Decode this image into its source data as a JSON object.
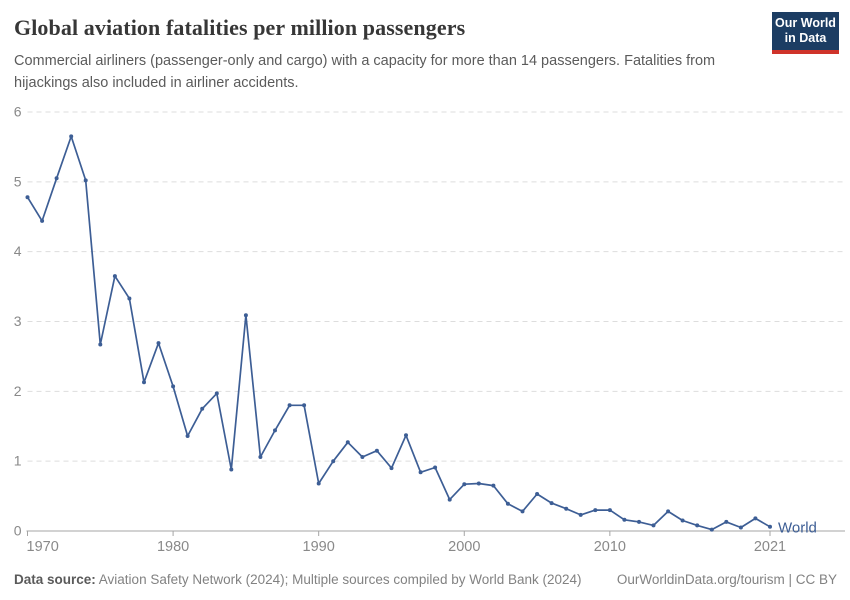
{
  "header": {
    "title": "Global aviation fatalities per million passengers",
    "subtitle": "Commercial airliners (passenger-only and cargo) with a capacity for more than 14 passengers. Fatalities from hijackings also included in airliner accidents.",
    "logo": {
      "line1": "Our World",
      "line2": "in Data",
      "bg_color": "#1c3d63",
      "accent_color": "#cf332a"
    }
  },
  "chart_data": {
    "type": "line",
    "title": "Global aviation fatalities per million passengers",
    "xlabel": "",
    "ylabel": "",
    "xlim": [
      1970,
      2021
    ],
    "ylim": [
      0,
      6
    ],
    "x_ticks": [
      1970,
      1980,
      1990,
      2000,
      2010,
      2021
    ],
    "y_ticks": [
      0,
      1,
      2,
      3,
      4,
      5,
      6
    ],
    "grid": "horizontal-dashed",
    "legend_position": "end-of-line",
    "line_color": "#3d5e95",
    "axis_text_color": "#898989",
    "grid_color": "#dddddd",
    "axis_line_color": "#a5a5a5",
    "series": [
      {
        "name": "World",
        "x": [
          1970,
          1971,
          1972,
          1973,
          1974,
          1975,
          1976,
          1977,
          1978,
          1979,
          1980,
          1981,
          1982,
          1983,
          1984,
          1985,
          1986,
          1987,
          1988,
          1989,
          1990,
          1991,
          1992,
          1993,
          1994,
          1995,
          1996,
          1997,
          1998,
          1999,
          2000,
          2001,
          2002,
          2003,
          2004,
          2005,
          2006,
          2007,
          2008,
          2009,
          2010,
          2011,
          2012,
          2013,
          2014,
          2015,
          2016,
          2017,
          2018,
          2019,
          2020,
          2021
        ],
        "values": [
          4.78,
          4.44,
          5.05,
          5.65,
          5.02,
          2.67,
          3.65,
          3.33,
          2.13,
          2.69,
          2.07,
          1.36,
          1.75,
          1.97,
          0.88,
          3.09,
          1.06,
          1.44,
          1.8,
          1.8,
          0.68,
          1.0,
          1.27,
          1.06,
          1.15,
          0.9,
          1.37,
          0.84,
          0.91,
          0.45,
          0.67,
          0.68,
          0.65,
          0.39,
          0.28,
          0.53,
          0.4,
          0.32,
          0.23,
          0.3,
          0.3,
          0.16,
          0.13,
          0.08,
          0.28,
          0.15,
          0.08,
          0.02,
          0.13,
          0.05,
          0.18,
          0.06
        ]
      }
    ]
  },
  "footer": {
    "source_label": "Data source:",
    "source_text": " Aviation Safety Network (2024); Multiple sources compiled by World Bank (2024)",
    "url": "OurWorldinData.org/tourism",
    "separator": " | ",
    "license": "CC BY"
  }
}
